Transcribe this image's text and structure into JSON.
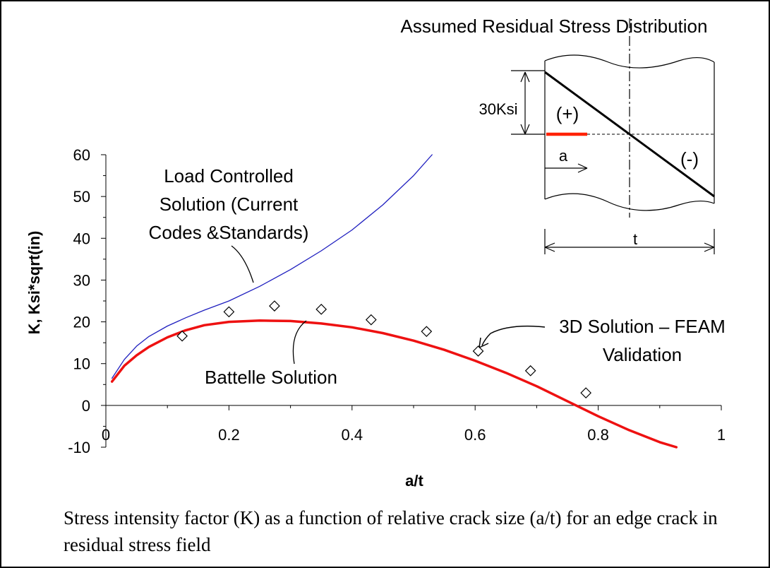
{
  "chart_data": {
    "type": "line",
    "ylabel": "K, Ksi*sqrt(in)",
    "xlabel": "a/t",
    "xlim": [
      0,
      1
    ],
    "ylim": [
      -10,
      60
    ],
    "x_ticks": [
      "0",
      "0.2",
      "0.4",
      "0.6",
      "0.8",
      "1"
    ],
    "y_ticks": [
      "60",
      "50",
      "40",
      "30",
      "20",
      "10",
      "0",
      "-10"
    ],
    "grid": false,
    "series": [
      {
        "name": "Load Controlled Solution (Current Codes &Standards)",
        "kind": "line",
        "color": "#1f1fbf",
        "x": [
          0.01,
          0.03,
          0.05,
          0.07,
          0.1,
          0.13,
          0.16,
          0.2,
          0.25,
          0.3,
          0.35,
          0.4,
          0.45,
          0.5,
          0.53
        ],
        "y": [
          6.5,
          11.0,
          14.2,
          16.5,
          19.0,
          21.0,
          22.8,
          25.0,
          28.5,
          32.5,
          37.0,
          42.0,
          48.0,
          55.0,
          60.0
        ]
      },
      {
        "name": "Battelle Solution",
        "kind": "line",
        "color": "#ee1111",
        "x": [
          0.01,
          0.03,
          0.05,
          0.07,
          0.1,
          0.13,
          0.16,
          0.2,
          0.25,
          0.3,
          0.35,
          0.4,
          0.45,
          0.5,
          0.55,
          0.6,
          0.65,
          0.7,
          0.75,
          0.8,
          0.85,
          0.9,
          0.927
        ],
        "y": [
          5.7,
          9.5,
          12.0,
          14.0,
          16.3,
          18.0,
          19.2,
          20.0,
          20.3,
          20.2,
          19.6,
          18.7,
          17.3,
          15.5,
          13.3,
          10.7,
          7.8,
          4.6,
          1.0,
          -2.6,
          -5.9,
          -8.8,
          -10.0
        ]
      },
      {
        "name": "3D Solution – FEAM Validation",
        "kind": "scatter",
        "marker": "diamond",
        "x": [
          0.124,
          0.2,
          0.274,
          0.35,
          0.431,
          0.521,
          0.605,
          0.69,
          0.78
        ],
        "y": [
          16.6,
          22.4,
          23.8,
          23.0,
          20.5,
          17.7,
          13.0,
          8.3,
          3.0
        ]
      }
    ],
    "annotations": [
      {
        "key": "load",
        "lines": [
          "Load Controlled",
          "Solution (Current",
          "Codes &Standards)"
        ]
      },
      {
        "key": "battelle",
        "lines": [
          "Battelle Solution"
        ]
      },
      {
        "key": "feam",
        "lines": [
          "3D Solution – FEAM",
          "Validation"
        ]
      }
    ]
  },
  "inset": {
    "title": "Assumed Residual Stress Distribution",
    "stress_label": "30Ksi",
    "plus_label": "(+)",
    "minus_label": "(-)",
    "a_label": "a",
    "t_label": "t"
  },
  "caption": "Stress intensity factor (K) as a function of relative crack size (a/t) for an edge crack in residual stress field"
}
